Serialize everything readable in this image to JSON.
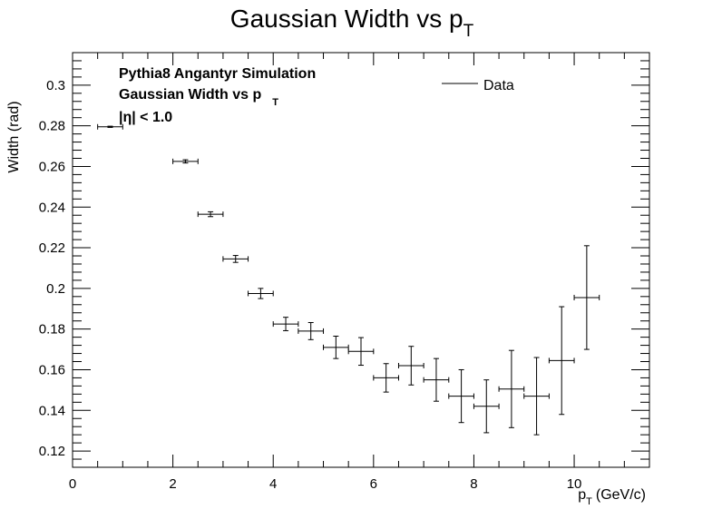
{
  "chart_data": {
    "type": "scatter",
    "title": "Gaussian Width vs p",
    "title_sub": "T",
    "xlabel": "p",
    "xlabel_sub": "T",
    "xlabel_unit": "(GeV/c)",
    "ylabel": "Width (rad)",
    "xlim": [
      0,
      11.5
    ],
    "ylim": [
      0.112,
      0.316
    ],
    "xticks": [
      "0",
      "2",
      "4",
      "6",
      "8",
      "10"
    ],
    "yticks": [
      "0.12",
      "0.14",
      "0.16",
      "0.18",
      "0.2",
      "0.22",
      "0.24",
      "0.26",
      "0.28",
      "0.3"
    ],
    "grid": false,
    "annotations": {
      "line1": "Pythia8 Angantyr Simulation",
      "line2": "Gaussian Width vs p",
      "line2_sub": "T",
      "line3": "|η| < 1.0"
    },
    "legend": {
      "label": "Data",
      "position": "top-right"
    },
    "series": [
      {
        "points": [
          {
            "x": 0.75,
            "xerr": 0.25,
            "y": 0.2795,
            "yerr": 0.0003
          },
          {
            "x": 2.25,
            "xerr": 0.25,
            "y": 0.2625,
            "yerr": 0.0008
          },
          {
            "x": 2.75,
            "xerr": 0.25,
            "y": 0.2365,
            "yerr": 0.0012
          },
          {
            "x": 3.25,
            "xerr": 0.25,
            "y": 0.2145,
            "yerr": 0.0017
          },
          {
            "x": 3.75,
            "xerr": 0.25,
            "y": 0.1975,
            "yerr": 0.0025
          },
          {
            "x": 4.25,
            "xerr": 0.25,
            "y": 0.1825,
            "yerr": 0.0033
          },
          {
            "x": 4.75,
            "xerr": 0.25,
            "y": 0.179,
            "yerr": 0.0042
          },
          {
            "x": 5.25,
            "xerr": 0.25,
            "y": 0.171,
            "yerr": 0.0055
          },
          {
            "x": 5.75,
            "xerr": 0.25,
            "y": 0.169,
            "yerr": 0.0068
          },
          {
            "x": 6.25,
            "xerr": 0.25,
            "y": 0.156,
            "yerr": 0.007
          },
          {
            "x": 6.75,
            "xerr": 0.25,
            "y": 0.162,
            "yerr": 0.0095
          },
          {
            "x": 7.25,
            "xerr": 0.25,
            "y": 0.155,
            "yerr": 0.0105
          },
          {
            "x": 7.75,
            "xerr": 0.25,
            "y": 0.147,
            "yerr": 0.013
          },
          {
            "x": 8.25,
            "xerr": 0.25,
            "y": 0.142,
            "yerr": 0.013
          },
          {
            "x": 8.75,
            "xerr": 0.25,
            "y": 0.1505,
            "yerr": 0.019
          },
          {
            "x": 9.25,
            "xerr": 0.25,
            "y": 0.147,
            "yerr": 0.019
          },
          {
            "x": 9.75,
            "xerr": 0.25,
            "y": 0.1645,
            "yerr": 0.0265
          },
          {
            "x": 10.25,
            "xerr": 0.25,
            "y": 0.1955,
            "yerr": 0.0255
          }
        ]
      }
    ]
  }
}
